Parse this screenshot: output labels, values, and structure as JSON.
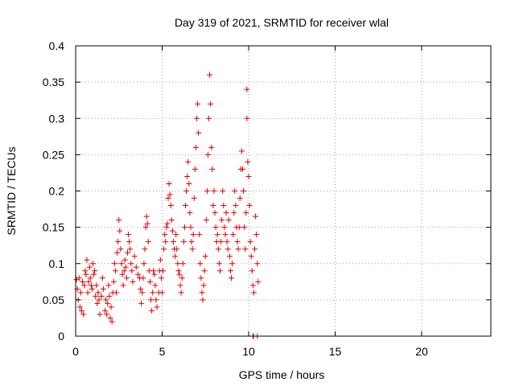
{
  "chart_data": {
    "type": "scatter",
    "title": "Day 319 of 2021, SRMTID for receiver wlal",
    "xlabel": "GPS time / hours",
    "ylabel": "SRMTID / TECUs",
    "xlim": [
      0,
      24
    ],
    "ylim": [
      0,
      0.4
    ],
    "x_ticks": [
      0,
      5,
      10,
      15,
      20
    ],
    "y_ticks": [
      0,
      0.05,
      0.1,
      0.15,
      0.2,
      0.25,
      0.3,
      0.35,
      0.4
    ],
    "x_tick_labels": [
      "0",
      "5",
      "10",
      "15",
      "20"
    ],
    "y_tick_labels": [
      "0",
      "0.05",
      "0.1",
      "0.15",
      "0.2",
      "0.25",
      "0.3",
      "0.35",
      "0.4"
    ],
    "grid": true,
    "marker": "+",
    "color": "#e00000",
    "series": [
      {
        "name": "SRMTID",
        "points": [
          [
            0.05,
            0.078
          ],
          [
            0.1,
            0.065
          ],
          [
            0.15,
            0.05
          ],
          [
            0.2,
            0.08
          ],
          [
            0.25,
            0.04
          ],
          [
            0.3,
            0.06
          ],
          [
            0.35,
            0.035
          ],
          [
            0.4,
            0.075
          ],
          [
            0.45,
            0.03
          ],
          [
            0.5,
            0.07
          ],
          [
            0.55,
            0.09
          ],
          [
            0.6,
            0.085
          ],
          [
            0.65,
            0.105
          ],
          [
            0.7,
            0.06
          ],
          [
            0.75,
            0.075
          ],
          [
            0.8,
            0.095
          ],
          [
            0.85,
            0.08
          ],
          [
            0.9,
            0.07
          ],
          [
            0.95,
            0.065
          ],
          [
            1.0,
            0.1
          ],
          [
            1.05,
            0.085
          ],
          [
            1.1,
            0.09
          ],
          [
            1.15,
            0.055
          ],
          [
            1.2,
            0.07
          ],
          [
            1.25,
            0.045
          ],
          [
            1.3,
            0.06
          ],
          [
            1.35,
            0.05
          ],
          [
            1.4,
            0.03
          ],
          [
            1.5,
            0.055
          ],
          [
            1.55,
            0.08
          ],
          [
            1.6,
            0.065
          ],
          [
            1.7,
            0.035
          ],
          [
            1.75,
            0.05
          ],
          [
            1.8,
            0.03
          ],
          [
            1.85,
            0.045
          ],
          [
            1.9,
            0.07
          ],
          [
            1.95,
            0.055
          ],
          [
            2.0,
            0.025
          ],
          [
            2.05,
            0.04
          ],
          [
            2.1,
            0.02
          ],
          [
            2.15,
            0.06
          ],
          [
            2.2,
            0.075
          ],
          [
            2.25,
            0.1
          ],
          [
            2.3,
            0.09
          ],
          [
            2.35,
            0.06
          ],
          [
            2.4,
            0.115
          ],
          [
            2.45,
            0.13
          ],
          [
            2.5,
            0.16
          ],
          [
            2.55,
            0.145
          ],
          [
            2.6,
            0.12
          ],
          [
            2.65,
            0.1
          ],
          [
            2.7,
            0.085
          ],
          [
            2.75,
            0.07
          ],
          [
            2.8,
            0.09
          ],
          [
            2.85,
            0.105
          ],
          [
            2.9,
            0.095
          ],
          [
            2.95,
            0.08
          ],
          [
            3.0,
            0.115
          ],
          [
            3.05,
            0.14
          ],
          [
            3.1,
            0.13
          ],
          [
            3.15,
            0.12
          ],
          [
            3.2,
            0.1
          ],
          [
            3.25,
            0.09
          ],
          [
            3.3,
            0.075
          ],
          [
            3.4,
            0.11
          ],
          [
            3.5,
            0.095
          ],
          [
            3.6,
            0.085
          ],
          [
            3.7,
            0.08
          ],
          [
            3.75,
            0.065
          ],
          [
            3.8,
            0.045
          ],
          [
            3.85,
            0.06
          ],
          [
            3.9,
            0.08
          ],
          [
            3.95,
            0.1
          ],
          [
            4.0,
            0.12
          ],
          [
            4.05,
            0.15
          ],
          [
            4.1,
            0.165
          ],
          [
            4.15,
            0.155
          ],
          [
            4.2,
            0.13
          ],
          [
            4.25,
            0.09
          ],
          [
            4.3,
            0.075
          ],
          [
            4.35,
            0.05
          ],
          [
            4.4,
            0.035
          ],
          [
            4.45,
            0.06
          ],
          [
            4.5,
            0.09
          ],
          [
            4.55,
            0.085
          ],
          [
            4.6,
            0.07
          ],
          [
            4.65,
            0.05
          ],
          [
            4.7,
            0.04
          ],
          [
            4.8,
            0.06
          ],
          [
            4.85,
            0.09
          ],
          [
            4.9,
            0.105
          ],
          [
            4.95,
            0.08
          ],
          [
            5.0,
            0.06
          ],
          [
            5.05,
            0.09
          ],
          [
            5.1,
            0.12
          ],
          [
            5.15,
            0.14
          ],
          [
            5.2,
            0.13
          ],
          [
            5.25,
            0.15
          ],
          [
            5.3,
            0.155
          ],
          [
            5.35,
            0.19
          ],
          [
            5.4,
            0.21
          ],
          [
            5.45,
            0.195
          ],
          [
            5.5,
            0.18
          ],
          [
            5.55,
            0.16
          ],
          [
            5.6,
            0.145
          ],
          [
            5.65,
            0.13
          ],
          [
            5.7,
            0.12
          ],
          [
            5.75,
            0.11
          ],
          [
            5.8,
            0.14
          ],
          [
            5.85,
            0.12
          ],
          [
            5.9,
            0.1
          ],
          [
            5.95,
            0.09
          ],
          [
            6.0,
            0.085
          ],
          [
            6.05,
            0.07
          ],
          [
            6.1,
            0.06
          ],
          [
            6.15,
            0.08
          ],
          [
            6.2,
            0.1
          ],
          [
            6.25,
            0.13
          ],
          [
            6.3,
            0.15
          ],
          [
            6.35,
            0.18
          ],
          [
            6.4,
            0.2
          ],
          [
            6.45,
            0.22
          ],
          [
            6.5,
            0.24
          ],
          [
            6.55,
            0.21
          ],
          [
            6.6,
            0.17
          ],
          [
            6.65,
            0.15
          ],
          [
            6.7,
            0.13
          ],
          [
            6.75,
            0.12
          ],
          [
            6.8,
            0.14
          ],
          [
            6.85,
            0.19
          ],
          [
            6.9,
            0.23
          ],
          [
            6.95,
            0.26
          ],
          [
            7.0,
            0.3
          ],
          [
            7.05,
            0.32
          ],
          [
            7.1,
            0.28
          ],
          [
            7.15,
            0.14
          ],
          [
            7.2,
            0.1
          ],
          [
            7.25,
            0.08
          ],
          [
            7.3,
            0.06
          ],
          [
            7.35,
            0.05
          ],
          [
            7.4,
            0.07
          ],
          [
            7.45,
            0.09
          ],
          [
            7.5,
            0.11
          ],
          [
            7.55,
            0.16
          ],
          [
            7.6,
            0.2
          ],
          [
            7.65,
            0.25
          ],
          [
            7.7,
            0.3
          ],
          [
            7.75,
            0.36
          ],
          [
            7.8,
            0.32
          ],
          [
            7.85,
            0.26
          ],
          [
            7.9,
            0.23
          ],
          [
            7.95,
            0.18
          ],
          [
            8.0,
            0.2
          ],
          [
            8.05,
            0.17
          ],
          [
            8.1,
            0.15
          ],
          [
            8.15,
            0.13
          ],
          [
            8.2,
            0.14
          ],
          [
            8.25,
            0.12
          ],
          [
            8.3,
            0.1
          ],
          [
            8.35,
            0.09
          ],
          [
            8.4,
            0.13
          ],
          [
            8.45,
            0.16
          ],
          [
            8.5,
            0.2
          ],
          [
            8.55,
            0.18
          ],
          [
            8.6,
            0.15
          ],
          [
            8.65,
            0.14
          ],
          [
            8.7,
            0.17
          ],
          [
            8.75,
            0.13
          ],
          [
            8.8,
            0.12
          ],
          [
            8.85,
            0.16
          ],
          [
            8.9,
            0.11
          ],
          [
            8.95,
            0.09
          ],
          [
            9.0,
            0.08
          ],
          [
            9.05,
            0.1
          ],
          [
            9.1,
            0.14
          ],
          [
            9.15,
            0.17
          ],
          [
            9.2,
            0.2
          ],
          [
            9.25,
            0.18
          ],
          [
            9.3,
            0.15
          ],
          [
            9.35,
            0.13
          ],
          [
            9.4,
            0.12
          ],
          [
            9.45,
            0.15
          ],
          [
            9.5,
            0.19
          ],
          [
            9.55,
            0.23
          ],
          [
            9.6,
            0.255
          ],
          [
            9.65,
            0.23
          ],
          [
            9.7,
            0.2
          ],
          [
            9.75,
            0.15
          ],
          [
            9.8,
            0.12
          ],
          [
            9.85,
            0.17
          ],
          [
            9.9,
            0.3
          ],
          [
            9.95,
            0.24
          ],
          [
            10.0,
            0.22
          ],
          [
            10.05,
            0.18
          ],
          [
            10.1,
            0.13
          ],
          [
            10.15,
            0.11
          ],
          [
            10.2,
            0.09
          ],
          [
            10.25,
            0.07
          ],
          [
            10.3,
            0.06
          ],
          [
            10.35,
            0.12
          ],
          [
            10.4,
            0.165
          ],
          [
            10.45,
            0.14
          ],
          [
            10.5,
            0.1
          ],
          [
            10.55,
            0.075
          ],
          [
            10.25,
            0.0
          ],
          [
            10.28,
            0.0
          ],
          [
            10.5,
            0.0
          ],
          [
            9.9,
            0.34
          ]
        ]
      }
    ]
  }
}
